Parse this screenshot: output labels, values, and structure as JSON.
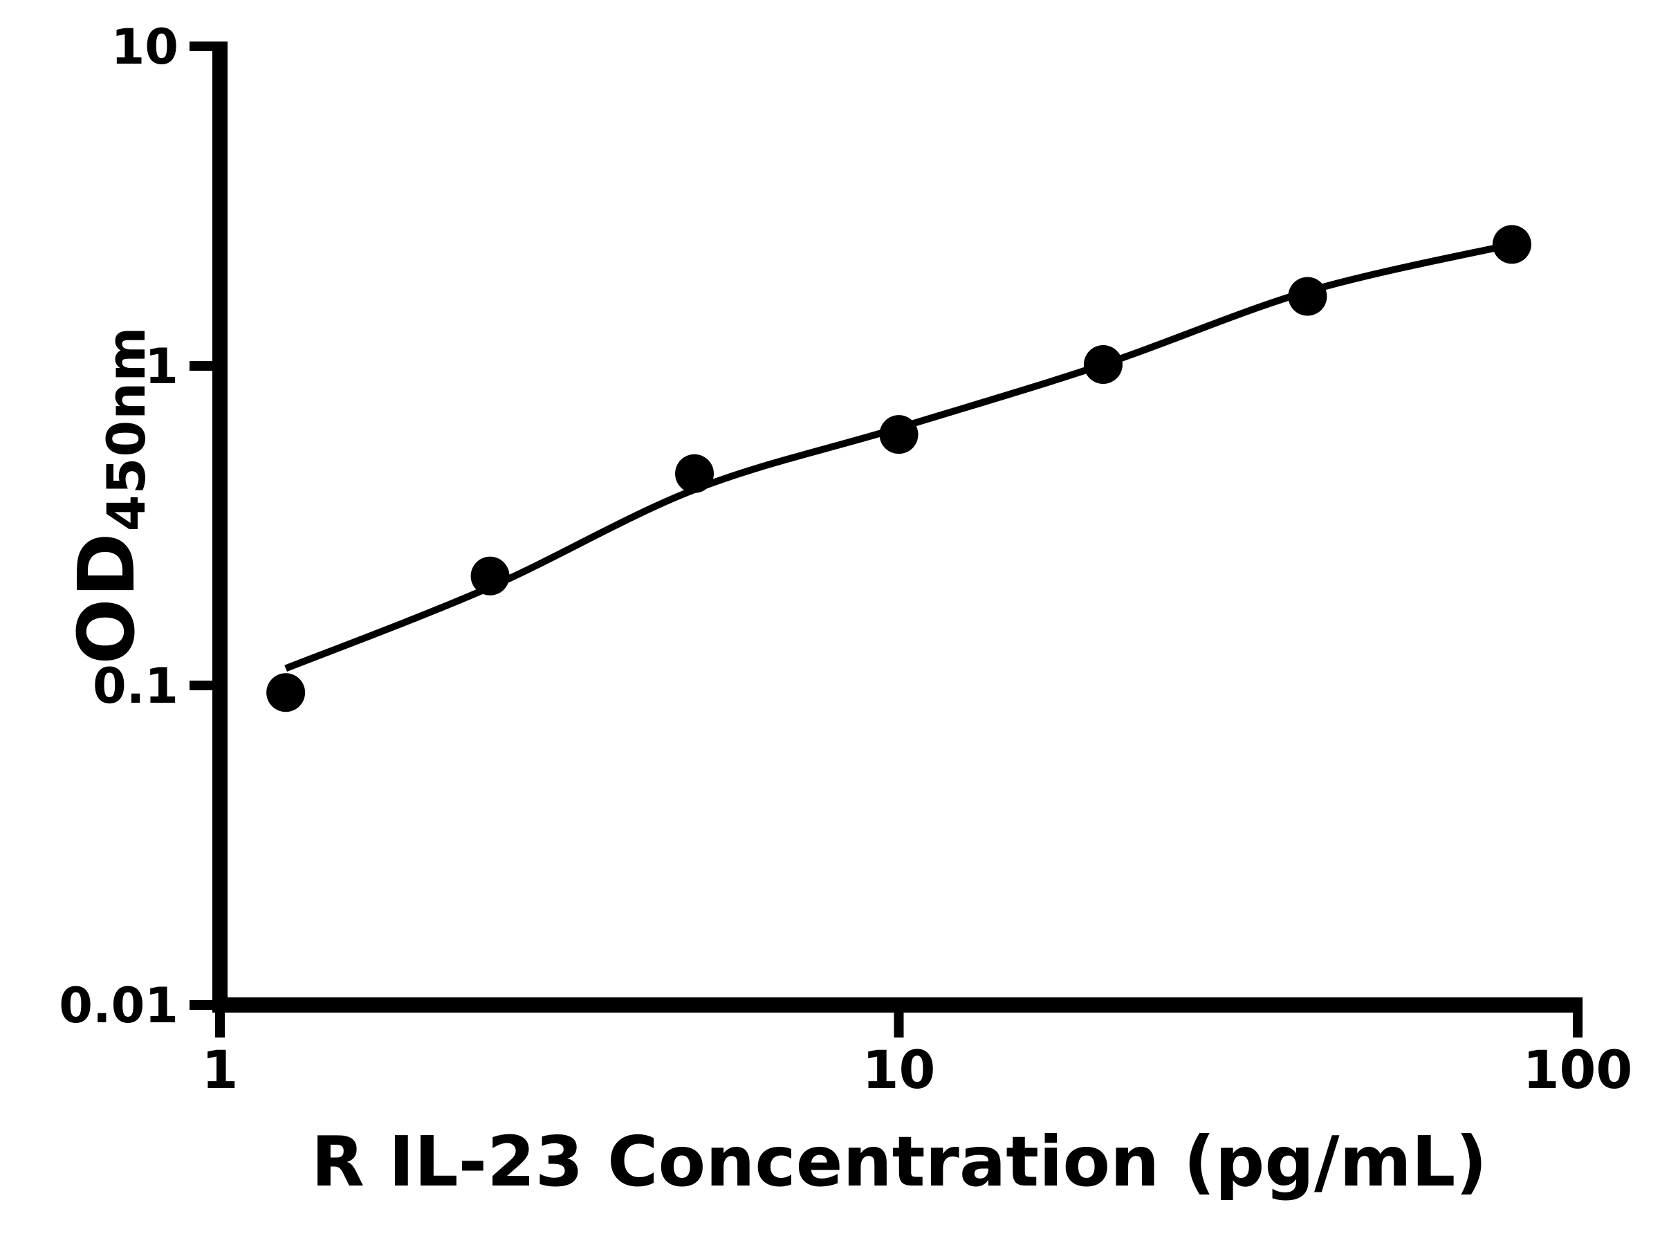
{
  "figure": {
    "background": "#ffffff",
    "foreground": "#000000"
  },
  "chart_data": {
    "type": "scatter",
    "title": "",
    "xlabel": "R IL-23 Concentration (pg/mL)",
    "ylabel_main": "OD",
    "ylabel_sub": "450nm",
    "x_scale": "log",
    "y_scale": "log",
    "xlim": [
      1,
      100
    ],
    "ylim": [
      0.01,
      10
    ],
    "grid": false,
    "legend": false,
    "x_ticks": [
      {
        "value": 1,
        "label": "1"
      },
      {
        "value": 10,
        "label": "10"
      },
      {
        "value": 100,
        "label": "100"
      }
    ],
    "y_ticks": [
      {
        "value": 0.01,
        "label": "0.01"
      },
      {
        "value": 0.1,
        "label": "0.1"
      },
      {
        "value": 1,
        "label": "1"
      },
      {
        "value": 10,
        "label": "10"
      }
    ],
    "series": [
      {
        "name": "standard-points",
        "type": "scatter",
        "marker": "circle-filled",
        "color": "#000000",
        "x": [
          1.25,
          2.5,
          5,
          10,
          20,
          40,
          80
        ],
        "y": [
          0.095,
          0.22,
          0.46,
          0.61,
          1.01,
          1.65,
          2.4
        ]
      },
      {
        "name": "fit-curve",
        "type": "line",
        "color": "#000000",
        "x": [
          1.25,
          2.5,
          5,
          10,
          20,
          40,
          80
        ],
        "y": [
          0.113,
          0.203,
          0.41,
          0.64,
          1.01,
          1.71,
          2.4
        ]
      }
    ]
  }
}
